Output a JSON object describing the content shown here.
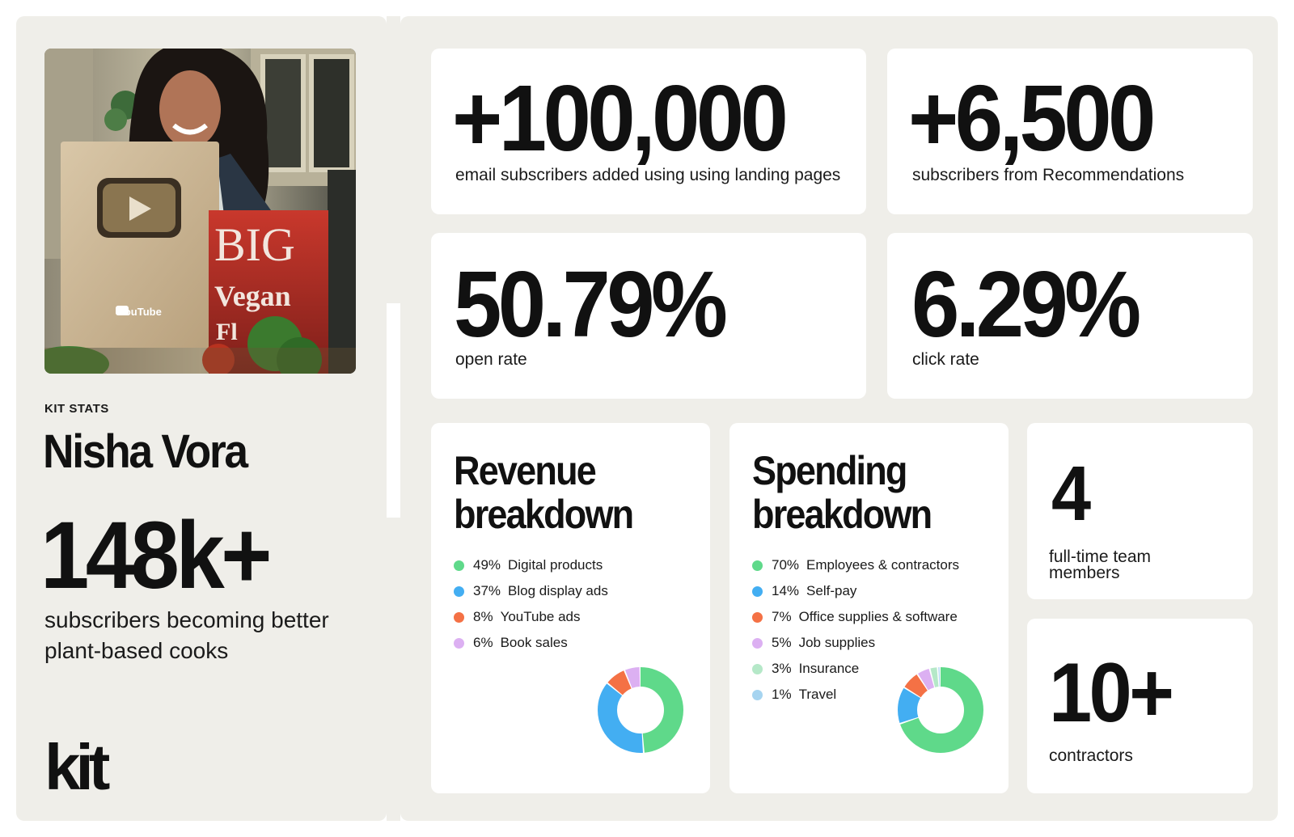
{
  "profile": {
    "eyebrow": "KIT STATS",
    "name": "Nisha Vora",
    "subscribers": "148k+",
    "subscribers_desc": "subscribers becoming better plant-based cooks",
    "photo_award_caption": "YouTube",
    "photo_book_title_1": "BIG",
    "photo_book_title_2": "Vegan",
    "photo_book_title_3": "Fl",
    "logo_text": "kit"
  },
  "stats": [
    {
      "value": "+100,000",
      "label": "email subscribers added using using landing pages"
    },
    {
      "value": "+6,500",
      "label": "subscribers from Recommendations"
    },
    {
      "value": "50.79%",
      "label": "open rate"
    },
    {
      "value": "6.29%",
      "label": "click rate"
    }
  ],
  "revenue": {
    "title_line1": "Revenue",
    "title_line2": "breakdown",
    "items": [
      {
        "pct": "49%",
        "label": "Digital products",
        "value": 49,
        "color": "#5fd98a"
      },
      {
        "pct": "37%",
        "label": "Blog display ads",
        "value": 37,
        "color": "#43aef2"
      },
      {
        "pct": "8%",
        "label": "YouTube ads",
        "value": 8,
        "color": "#f47145"
      },
      {
        "pct": "6%",
        "label": "Book sales",
        "value": 6,
        "color": "#dcb0f2"
      }
    ]
  },
  "spending": {
    "title_line1": "Spending",
    "title_line2": "breakdown",
    "items": [
      {
        "pct": "70%",
        "label": "Employees & contractors",
        "value": 70,
        "color": "#5fd98a"
      },
      {
        "pct": "14%",
        "label": "Self-pay",
        "value": 14,
        "color": "#43aef2"
      },
      {
        "pct": "7%",
        "label": "Office supplies & software",
        "value": 7,
        "color": "#f47145"
      },
      {
        "pct": "5%",
        "label": "Job supplies",
        "value": 5,
        "color": "#dcb0f2"
      },
      {
        "pct": "3%",
        "label": "Insurance",
        "value": 3,
        "color": "#b5e8c8"
      },
      {
        "pct": "1%",
        "label": "Travel",
        "value": 1,
        "color": "#a6d4f0"
      }
    ]
  },
  "team": {
    "fulltime_value": "4",
    "fulltime_label": "full-time team members",
    "contractors_value": "10+",
    "contractors_label": "contractors"
  }
}
